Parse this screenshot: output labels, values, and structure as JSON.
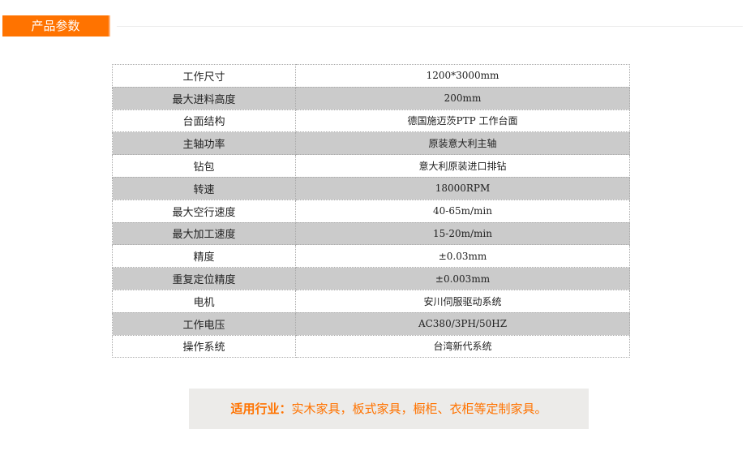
{
  "header": {
    "tab_label": "产品参数"
  },
  "specs": [
    {
      "k": "工作尺寸",
      "v": "1200*3000mm"
    },
    {
      "k": "最大进料高度",
      "v": "200mm"
    },
    {
      "k": "台面结构",
      "v": "德国施迈茨PTP 工作台面"
    },
    {
      "k": "主轴功率",
      "v": "原装意大利主轴"
    },
    {
      "k": "钻包",
      "v": "意大利原装进口排钻"
    },
    {
      "k": "转速",
      "v": "18000RPM"
    },
    {
      "k": "最大空行速度",
      "v": "40-65m/min"
    },
    {
      "k": "最大加工速度",
      "v": "15-20m/min"
    },
    {
      "k": "精度",
      "v": "±0.03mm"
    },
    {
      "k": "重复定位精度",
      "v": "±0.003mm"
    },
    {
      "k": "电机",
      "v": "安川伺服驱动系统"
    },
    {
      "k": "工作电压",
      "v": "AC380/3PH/50HZ"
    },
    {
      "k": "操作系统",
      "v": "台湾新代系统"
    }
  ],
  "industry": {
    "label": "适用行业：",
    "text": "实木家具，板式家具，橱柜、衣柜等定制家具。"
  },
  "colors": {
    "accent": "#ff7300",
    "row_alt": "#cbcbcb",
    "box_bg": "#ecebe9"
  }
}
